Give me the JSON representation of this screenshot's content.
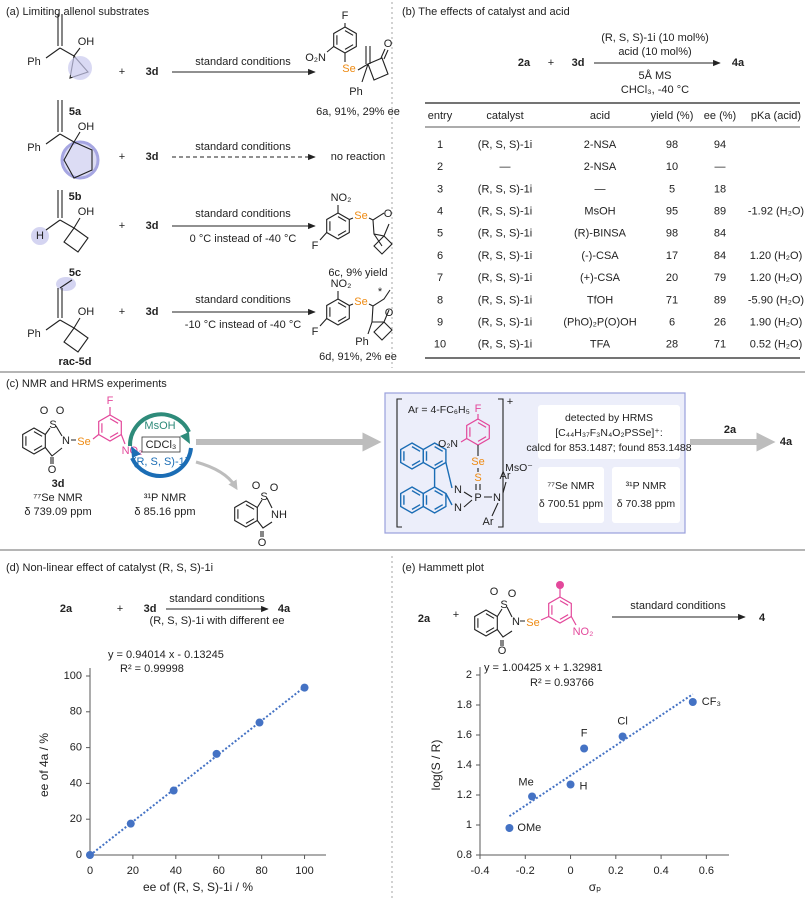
{
  "panel_a": {
    "title": "(a) Limiting allenol substrates",
    "rows": [
      {
        "substrate": "5a",
        "substrate_atoms": [
          "Ph",
          "OH"
        ],
        "plus": "+",
        "reagent": "3d",
        "conditions": "standard conditions",
        "product": "6a, 91%, 29% ee",
        "product_atoms": [
          "F",
          "O₂N",
          "Se",
          "Ph",
          "O"
        ]
      },
      {
        "substrate": "5b",
        "substrate_atoms": [
          "Ph",
          "OH"
        ],
        "plus": "+",
        "reagent": "3d",
        "conditions": "standard conditions",
        "product": "no reaction"
      },
      {
        "substrate": "5c",
        "substrate_atoms": [
          "H",
          "OH"
        ],
        "plus": "+",
        "reagent": "3d",
        "conditions": "standard conditions",
        "note": "0 °C instead of -40 °C",
        "product": "6c, 9% yield",
        "product_atoms": [
          "NO₂",
          "Se",
          "F",
          "O"
        ]
      },
      {
        "substrate": "rac-5d",
        "substrate_atoms": [
          "Ph",
          "OH"
        ],
        "plus": "+",
        "reagent": "3d",
        "conditions": "standard conditions",
        "note": "-10 °C instead of -40 °C",
        "product": "6d, 91%, 2% ee",
        "product_atoms": [
          "NO₂",
          "Se",
          "F",
          "Ph",
          "O",
          "*"
        ]
      }
    ]
  },
  "panel_b": {
    "title": "(b) The effects of catalyst and acid",
    "scheme": {
      "reactant": "2a",
      "plus": "+",
      "reagent": "3d",
      "above": [
        "(R, S, S)-1i (10 mol%)",
        "acid (10 mol%)"
      ],
      "below": [
        "5Å MS",
        "CHCl₃, -40 °C"
      ],
      "product": "4a"
    },
    "table": {
      "header": [
        "entry",
        "catalyst",
        "acid",
        "yield (%)",
        "ee (%)",
        "pKa (acid)"
      ],
      "rows": [
        [
          1,
          "(R, S, S)-1i",
          "2-NSA",
          98,
          94,
          null
        ],
        [
          2,
          "—",
          "2-NSA",
          10,
          "—",
          null
        ],
        [
          3,
          "(R, S, S)-1i",
          "—",
          5,
          18,
          null
        ],
        [
          4,
          "(R, S, S)-1i",
          "MsOH",
          95,
          89,
          "-1.92 (H₂O)"
        ],
        [
          5,
          "(R, S, S)-1i",
          "(R)-BINSA",
          98,
          84,
          null
        ],
        [
          6,
          "(R, S, S)-1i",
          "(-)-CSA",
          17,
          84,
          "1.20 (H₂O)"
        ],
        [
          7,
          "(R, S, S)-1i",
          "(+)-CSA",
          20,
          79,
          "1.20 (H₂O)"
        ],
        [
          8,
          "(R, S, S)-1i",
          "TfOH",
          71,
          89,
          "-5.90 (H₂O)"
        ],
        [
          9,
          "(R, S, S)-1i",
          "(PhO)₂P(O)OH",
          6,
          26,
          "1.90 (H₂O)"
        ],
        [
          10,
          "(R, S, S)-1i",
          "TFA",
          28,
          71,
          "0.52 (H₂O)"
        ]
      ]
    }
  },
  "panel_c": {
    "title": "(c) NMR and HRMS experiments",
    "reagent": {
      "label": "3d",
      "atoms": [
        "O",
        "O",
        "S",
        "N",
        "O",
        "Se",
        "F",
        "NO₂"
      ],
      "nmr": "⁷⁷Se NMR",
      "shift": "δ 739.09 ppm"
    },
    "cycle": {
      "acid": "MsOH",
      "solvent": "CDCl₃",
      "catalyst": "(R, S, S)-1i",
      "nmr": "³¹P NMR",
      "shift": "δ 85.16 ppm"
    },
    "byproduct_atoms": [
      "O",
      "O",
      "S",
      "NH",
      "O"
    ],
    "intermediate": {
      "ar": "Ar = 4-FC₆H₅",
      "charge": "+",
      "counterion": "MsO⁻",
      "atoms": [
        "F",
        "O₂N",
        "Se",
        "S",
        "P",
        "N",
        "N",
        "N",
        "Ar",
        "Ar"
      ],
      "hrms": [
        "detected by HRMS",
        "[C₄₄H₃₇F₃N₄O₂PSSe]⁺:",
        "calcd for 853.1487; found 853.1488"
      ],
      "se_nmr": "⁷⁷Se NMR",
      "se_shift": "δ 700.51 ppm",
      "p_nmr": "³¹P NMR",
      "p_shift": "δ 70.38 ppm"
    },
    "next": {
      "reactant": "2a",
      "product": "4a"
    }
  },
  "chart_data": [
    {
      "type": "scatter",
      "title": "(d) Non-linear effect of catalyst (R, S, S)-1i",
      "scheme": {
        "reactant": "2a",
        "plus": "+",
        "reagent": "3d",
        "above": "standard conditions",
        "below": "(R, S, S)-1i with different ee",
        "product": "4a"
      },
      "x": [
        0,
        19,
        39,
        59,
        79,
        100
      ],
      "series": [
        {
          "values": [
            0,
            17.5,
            36,
            56.5,
            74,
            93.5
          ],
          "color": "#4472c4"
        }
      ],
      "trendline": {
        "label": "y = 0.94014 x - 0.13245",
        "r2": "R² = 0.99998",
        "slope": 0.94014,
        "intercept": -0.13245
      },
      "xlim": [
        0,
        110
      ],
      "ylim": [
        0,
        100
      ],
      "xticks": [
        0,
        20,
        40,
        60,
        80,
        100
      ],
      "yticks": [
        0,
        20,
        40,
        60,
        80,
        100
      ],
      "xlabel": "ee of (R, S, S)-1i / %",
      "ylabel": "ee of 4a / %"
    },
    {
      "type": "scatter",
      "title": "(e) Hammett plot",
      "scheme": {
        "reactant": "2a",
        "plus": "+",
        "atoms": [
          "O",
          "O",
          "S",
          "N",
          "O",
          "Se",
          "NO₂"
        ],
        "above": "standard conditions",
        "product": "4"
      },
      "x": [
        -0.27,
        -0.17,
        0,
        0.06,
        0.23,
        0.54
      ],
      "series": [
        {
          "values": [
            0.98,
            1.19,
            1.27,
            1.51,
            1.59,
            1.82
          ],
          "color": "#4472c4",
          "labels": [
            "OMe",
            "Me",
            "H",
            "F",
            "Cl",
            "CF₃"
          ]
        }
      ],
      "trendline": {
        "label": "y = 1.00425 x + 1.32981",
        "r2": "R² = 0.93766",
        "slope": 1.00425,
        "intercept": 1.32981
      },
      "xlim": [
        -0.4,
        0.7
      ],
      "ylim": [
        0.8,
        2
      ],
      "xticks": [
        -0.4,
        -0.2,
        0,
        0.2,
        0.4,
        0.6
      ],
      "yticks": [
        0.8,
        1,
        1.2,
        1.4,
        1.6,
        1.8,
        2
      ],
      "xlabel": "σₚ",
      "ylabel": "log(S / R)"
    }
  ]
}
